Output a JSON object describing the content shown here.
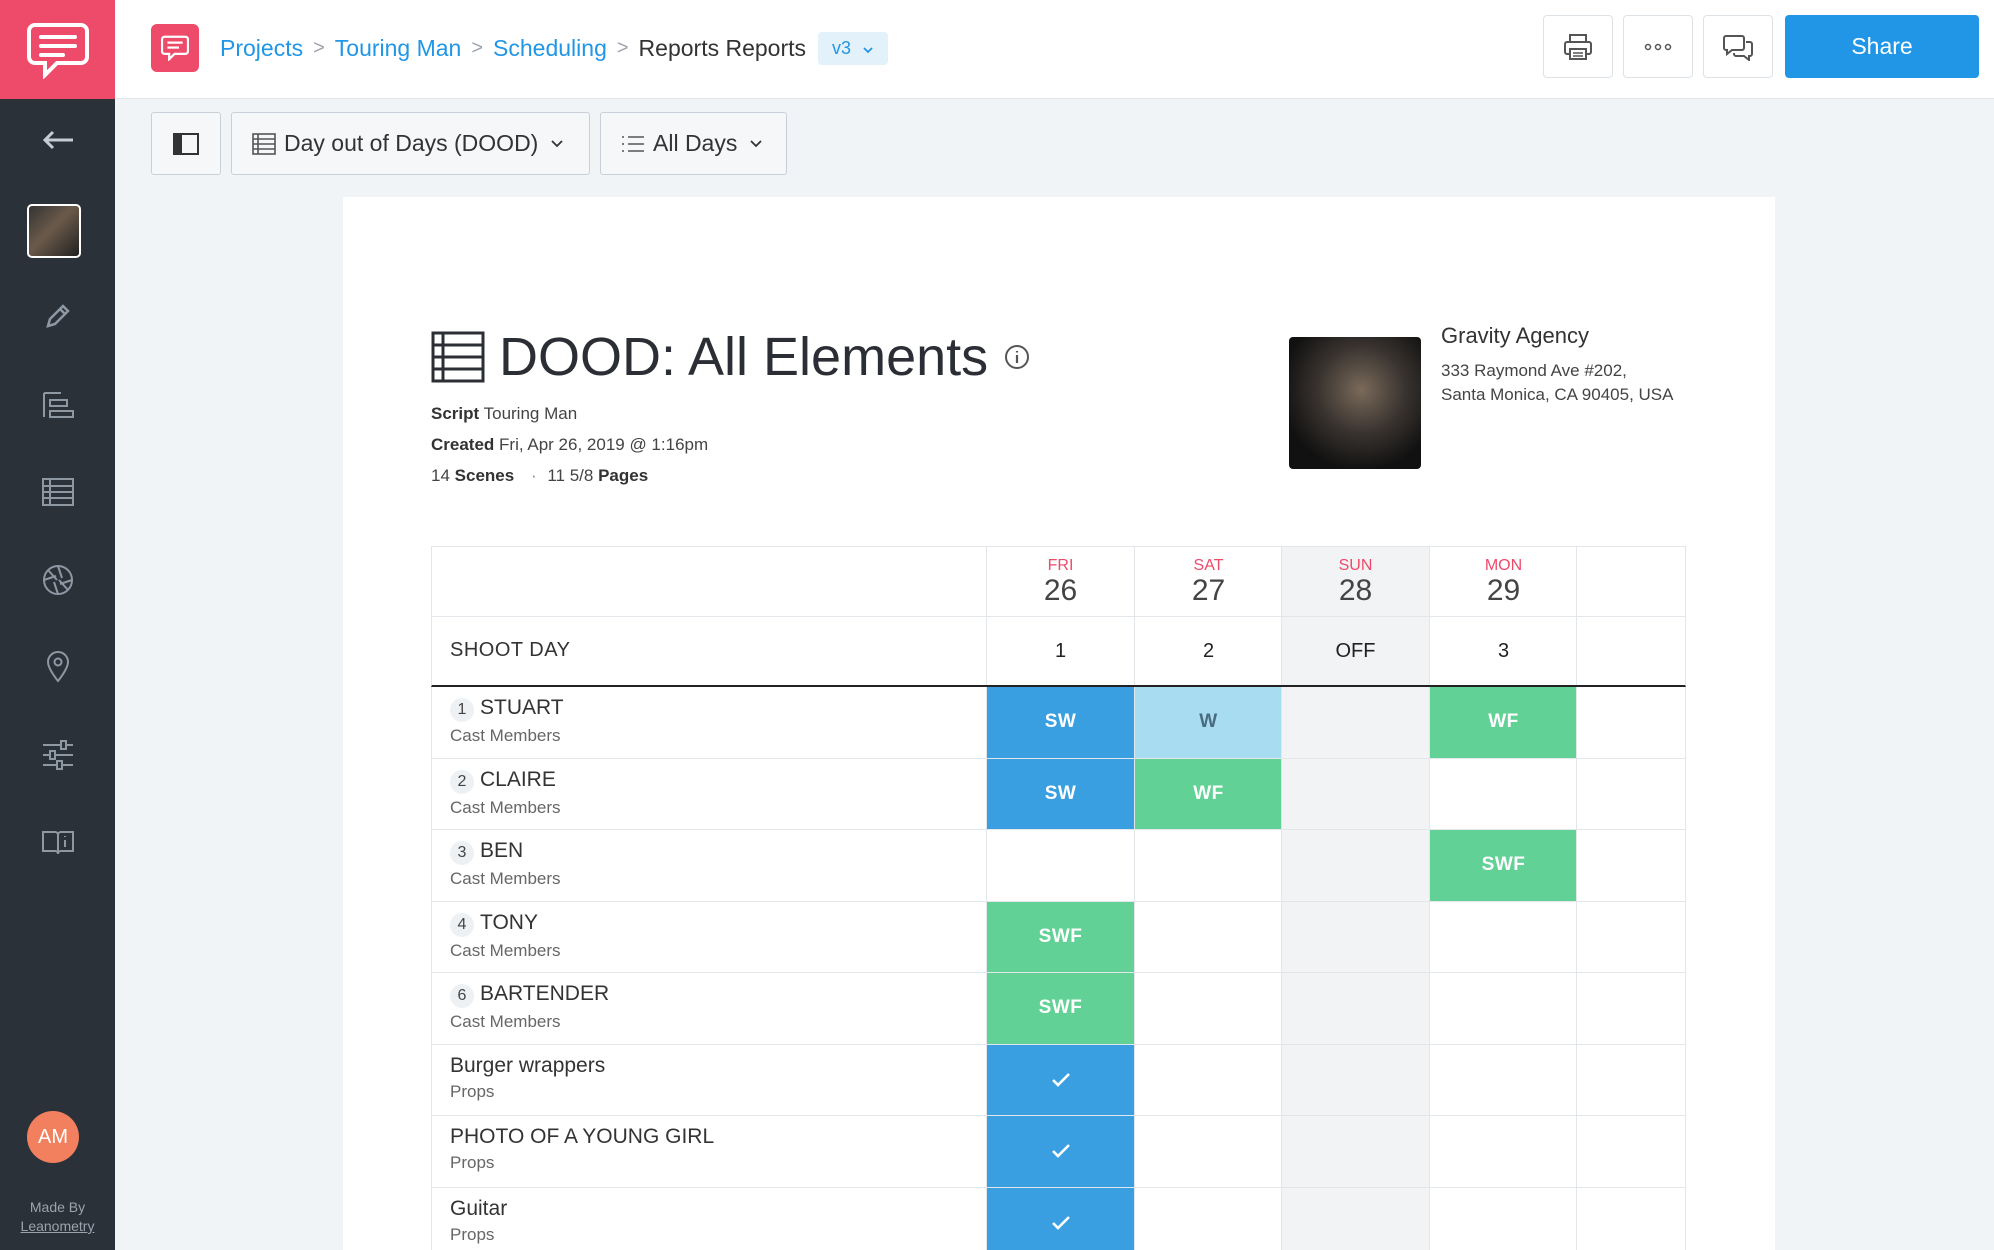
{
  "sidebar": {
    "made_by_label": "Made By",
    "made_by_brand": "Leanometry",
    "avatar_initials": "AM"
  },
  "breadcrumb": {
    "projects": "Projects",
    "project": "Touring Man",
    "section": "Scheduling",
    "current": "Reports Reports",
    "version": "v3"
  },
  "top_actions": {
    "share_label": "Share"
  },
  "toolbar": {
    "report_type": "Day out of Days (DOOD)",
    "day_filter": "All Days"
  },
  "document": {
    "title": "DOOD: All Elements",
    "script_label": "Script",
    "script_value": "Touring Man",
    "created_label": "Created",
    "created_value": "Fri, Apr 26, 2019 @ 1:16pm",
    "scenes_count": "14",
    "scenes_label": "Scenes",
    "separator": "·",
    "pages_count": "11 5/8",
    "pages_label": "Pages",
    "agency_name": "Gravity Agency",
    "agency_address_1": "333 Raymond Ave #202,",
    "agency_address_2": "Santa Monica, CA 90405, USA"
  },
  "table": {
    "shoot_day_label": "SHOOT DAY",
    "days": [
      {
        "weekday": "FRI",
        "date": "26",
        "shoot_day": "1",
        "off": false
      },
      {
        "weekday": "SAT",
        "date": "27",
        "shoot_day": "2",
        "off": false
      },
      {
        "weekday": "SUN",
        "date": "28",
        "shoot_day": "OFF",
        "off": true
      },
      {
        "weekday": "MON",
        "date": "29",
        "shoot_day": "3",
        "off": false
      }
    ],
    "rows": [
      {
        "num": "1",
        "name": "STUART",
        "category": "Cast Members",
        "cells": [
          "SW",
          "W",
          "",
          "WF"
        ]
      },
      {
        "num": "2",
        "name": "CLAIRE",
        "category": "Cast Members",
        "cells": [
          "SW",
          "WF",
          "",
          ""
        ]
      },
      {
        "num": "3",
        "name": "BEN",
        "category": "Cast Members",
        "cells": [
          "",
          "",
          "",
          "SWF"
        ]
      },
      {
        "num": "4",
        "name": "TONY",
        "category": "Cast Members",
        "cells": [
          "SWF",
          "",
          "",
          ""
        ]
      },
      {
        "num": "6",
        "name": "BARTENDER",
        "category": "Cast Members",
        "cells": [
          "SWF",
          "",
          "",
          ""
        ]
      },
      {
        "num": "",
        "name": "Burger wrappers",
        "category": "Props",
        "cells": [
          "check",
          "",
          "",
          ""
        ]
      },
      {
        "num": "",
        "name": "PHOTO OF A YOUNG GIRL",
        "category": "Props",
        "cells": [
          "check",
          "",
          "",
          ""
        ]
      },
      {
        "num": "",
        "name": "Guitar",
        "category": "Props",
        "cells": [
          "check",
          "",
          "",
          ""
        ]
      }
    ]
  },
  "colors": {
    "brand": "#ee4b6b",
    "accent": "#2196e6",
    "start_blue": "#3a9fe0",
    "work_light_blue": "#a8dcf0",
    "finish_green": "#62d195",
    "off_gray": "#f1f3f5"
  }
}
